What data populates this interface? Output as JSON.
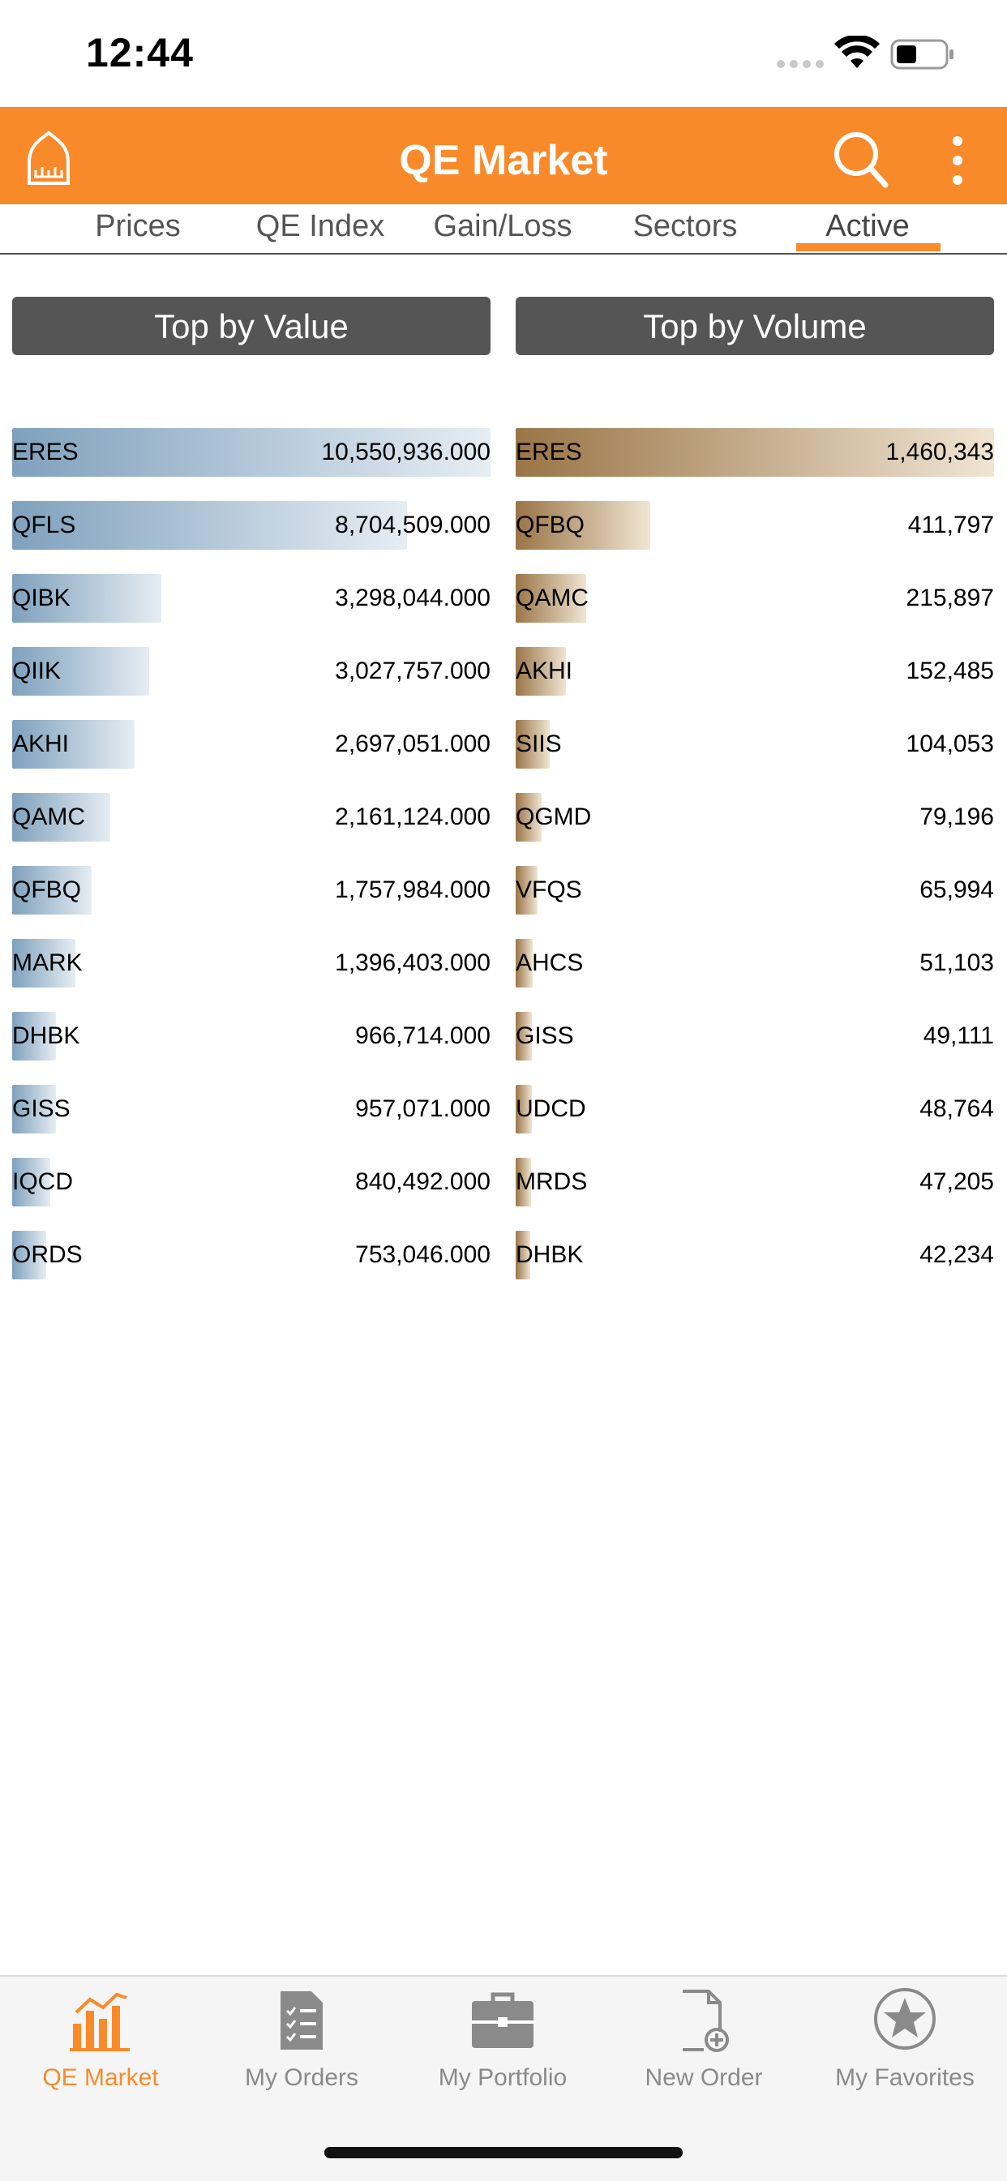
{
  "status": {
    "time": "12:44"
  },
  "header": {
    "title": "QE Market",
    "accent": "#f88a2a"
  },
  "tabs": [
    {
      "label": "Prices"
    },
    {
      "label": "QE Index"
    },
    {
      "label": "Gain/Loss"
    },
    {
      "label": "Sectors"
    },
    {
      "label": "Active",
      "active": true
    }
  ],
  "sections": {
    "value_label": "Top by Value",
    "volume_label": "Top by Volume"
  },
  "chart_data": [
    {
      "type": "bar",
      "title": "Top by Value",
      "categories": [
        "ERES",
        "QFLS",
        "QIBK",
        "QIIK",
        "AKHI",
        "QAMC",
        "QFBQ",
        "MARK",
        "DHBK",
        "GISS",
        "IQCD",
        "ORDS"
      ],
      "labels": [
        "10,550,936.000",
        "8,704,509.000",
        "3,298,044.000",
        "3,027,757.000",
        "2,697,051.000",
        "2,161,124.000",
        "1,757,984.000",
        "1,396,403.000",
        "966,714.000",
        "957,071.000",
        "840,492.000",
        "753,046.000"
      ],
      "values": [
        10550936,
        8704509,
        3298044,
        3027757,
        2697051,
        2161124,
        1757984,
        1396403,
        966714,
        957071,
        840492,
        753046
      ]
    },
    {
      "type": "bar",
      "title": "Top by Volume",
      "categories": [
        "ERES",
        "QFBQ",
        "QAMC",
        "AKHI",
        "SIIS",
        "QGMD",
        "VFQS",
        "AHCS",
        "GISS",
        "UDCD",
        "MRDS",
        "DHBK"
      ],
      "labels": [
        "1,460,343",
        "411,797",
        "215,897",
        "152,485",
        "104,053",
        "79,196",
        "65,994",
        "51,103",
        "49,111",
        "48,764",
        "47,205",
        "42,234"
      ],
      "values": [
        1460343,
        411797,
        215897,
        152485,
        104053,
        79196,
        65994,
        51103,
        49111,
        48764,
        47205,
        42234
      ]
    }
  ],
  "bottom_nav": [
    {
      "label": "QE Market",
      "icon": "bar-chart-icon",
      "active": true
    },
    {
      "label": "My Orders",
      "icon": "orders-list-icon"
    },
    {
      "label": "My Portfolio",
      "icon": "briefcase-icon"
    },
    {
      "label": "New Order",
      "icon": "new-document-icon"
    },
    {
      "label": "My Favorites",
      "icon": "star-icon"
    }
  ]
}
